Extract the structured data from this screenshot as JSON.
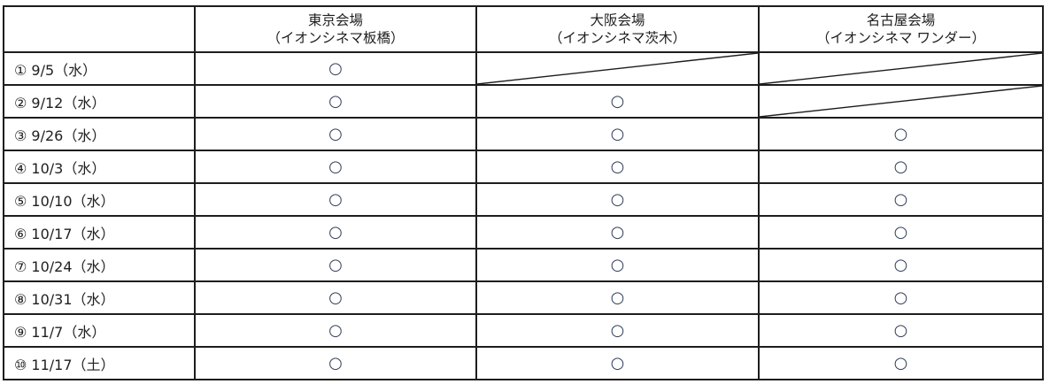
{
  "document": {
    "table": {
      "header": {
        "date_column_label": "",
        "venues": [
          {
            "name": "東京会場",
            "cinema": "（イオンシネマ板橋）"
          },
          {
            "name": "大阪会場",
            "cinema": "（イオンシネマ茨木）"
          },
          {
            "name": "名古屋会場",
            "cinema": "（イオンシネマ ワンダー）"
          }
        ]
      },
      "marks": {
        "available": "○",
        "unavailable": "diagonal-slash"
      },
      "rows": [
        {
          "date": "① 9/5（水）",
          "availability": [
            "available",
            "unavailable",
            "unavailable"
          ]
        },
        {
          "date": "② 9/12（水）",
          "availability": [
            "available",
            "available",
            "unavailable"
          ]
        },
        {
          "date": "③ 9/26（水）",
          "availability": [
            "available",
            "available",
            "available"
          ]
        },
        {
          "date": "④ 10/3（水）",
          "availability": [
            "available",
            "available",
            "available"
          ]
        },
        {
          "date": "⑤ 10/10（水）",
          "availability": [
            "available",
            "available",
            "available"
          ]
        },
        {
          "date": "⑥ 10/17（水）",
          "availability": [
            "available",
            "available",
            "available"
          ]
        },
        {
          "date": "⑦ 10/24（水）",
          "availability": [
            "available",
            "available",
            "available"
          ]
        },
        {
          "date": "⑧ 10/31（水）",
          "availability": [
            "available",
            "available",
            "available"
          ]
        },
        {
          "date": "⑨ 11/7（水）",
          "availability": [
            "available",
            "available",
            "available"
          ]
        },
        {
          "date": "⑩ 11/17（土）",
          "availability": [
            "available",
            "available",
            "available"
          ]
        }
      ]
    },
    "colors": {
      "border": "#1d1d1d",
      "text": "#1f1f1f",
      "circle_mark": "#33415c"
    }
  }
}
